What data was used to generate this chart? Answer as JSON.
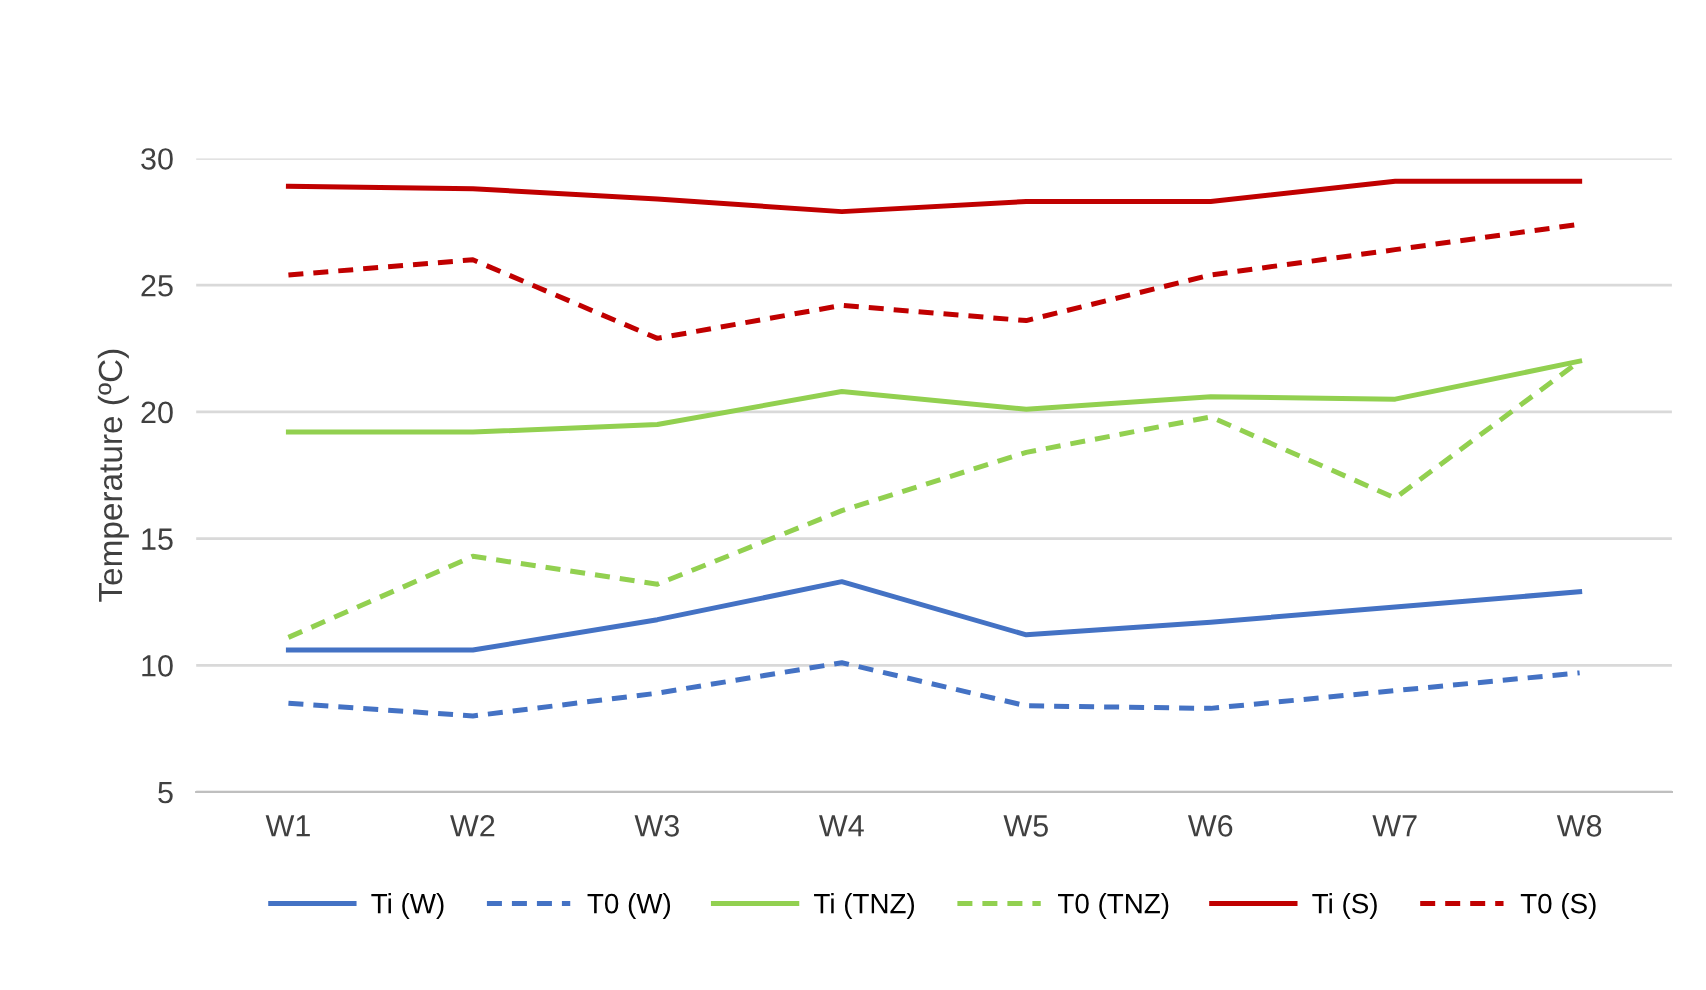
{
  "chart_data": {
    "type": "line",
    "ylabel": "Temperature (ºC)",
    "categories": [
      "W1",
      "W2",
      "W3",
      "W4",
      "W5",
      "W6",
      "W7",
      "W8"
    ],
    "ylim": [
      5,
      30
    ],
    "yticks": [
      5,
      10,
      15,
      20,
      25,
      30
    ],
    "grid": "y",
    "legend": "bottom",
    "marker": "none",
    "series": [
      {
        "name": "Ti (W)",
        "color": "#4472c4",
        "line_style": "solid",
        "values": [
          10.6,
          10.6,
          11.8,
          13.3,
          11.2,
          11.7,
          12.3,
          12.9
        ]
      },
      {
        "name": "T0 (W)",
        "color": "#4472c4",
        "line_style": "dashed",
        "values": [
          8.5,
          8.0,
          8.9,
          10.1,
          8.4,
          8.3,
          9.0,
          9.7
        ]
      },
      {
        "name": "Ti (TNZ)",
        "color": "#92d050",
        "line_style": "solid",
        "values": [
          19.2,
          19.2,
          19.5,
          20.8,
          20.1,
          20.6,
          20.5,
          22.0
        ]
      },
      {
        "name": "T0 (TNZ)",
        "color": "#92d050",
        "line_style": "dashed",
        "values": [
          11.1,
          14.3,
          13.2,
          16.1,
          18.4,
          19.8,
          16.6,
          22.0
        ]
      },
      {
        "name": "Ti (S)",
        "color": "#c00000",
        "line_style": "solid",
        "values": [
          28.9,
          28.8,
          28.4,
          27.9,
          28.3,
          28.3,
          29.1,
          29.1
        ]
      },
      {
        "name": "T0 (S)",
        "color": "#c00000",
        "line_style": "dashed",
        "values": [
          25.4,
          26.0,
          22.9,
          24.2,
          23.6,
          25.4,
          26.4,
          27.4
        ]
      }
    ]
  }
}
